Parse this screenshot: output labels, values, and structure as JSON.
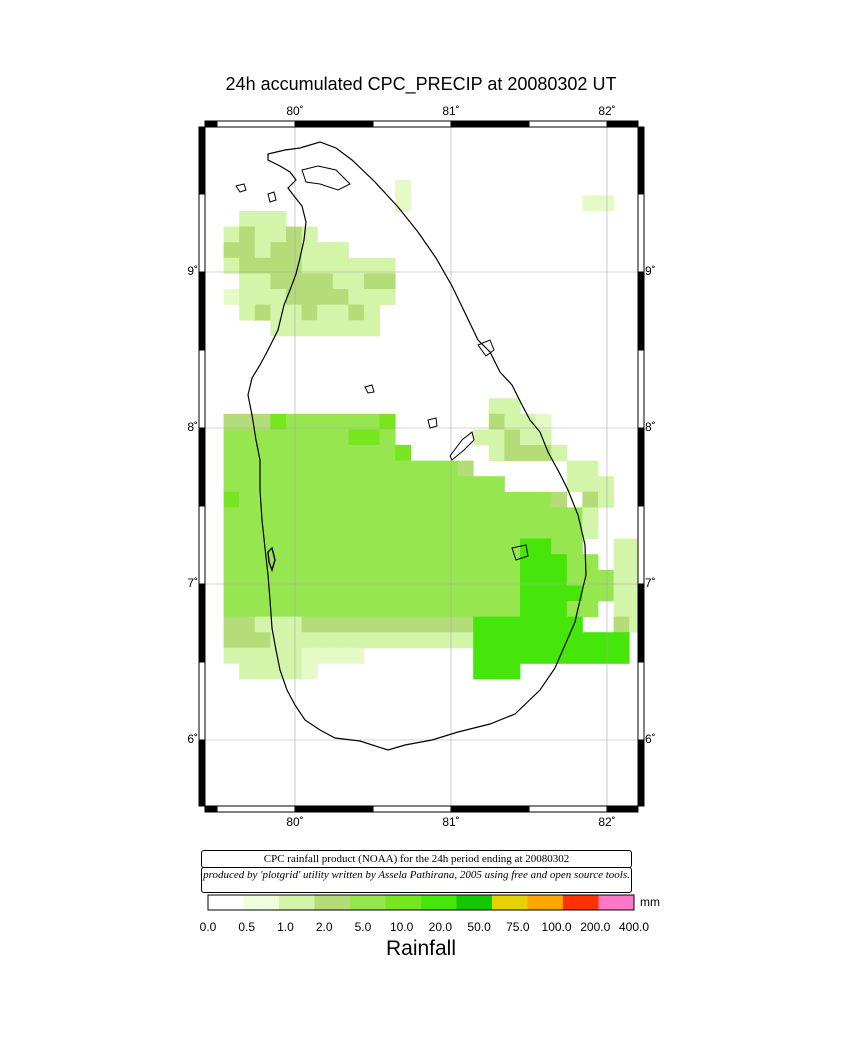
{
  "title": "24h accumulated CPC_PRECIP  at 20080302 UT",
  "lon_ticks": [
    {
      "value": 80,
      "label": "80˚"
    },
    {
      "value": 81,
      "label": "81˚"
    },
    {
      "value": 82,
      "label": "82˚"
    }
  ],
  "lat_ticks": [
    {
      "value": 9,
      "label": "9˚"
    },
    {
      "value": 8,
      "label": "8˚"
    },
    {
      "value": 7,
      "label": "7˚"
    },
    {
      "value": 6,
      "label": "6˚"
    }
  ],
  "info_line1": "CPC rainfall product (NOAA) for the 24h period ending at 20080302",
  "info_line2": "produced by 'plotgrid' utility written by Assela Pathirana, 2005 using free and open source tools.",
  "colorbar": {
    "unit": "mm",
    "title": "Rainfall",
    "labels": [
      "0.0",
      "0.5",
      "1.0",
      "2.0",
      "5.0",
      "10.0",
      "20.0",
      "50.0",
      "75.0",
      "100.0",
      "200.0",
      "400.0"
    ],
    "colors": [
      "#ffffff",
      "#f0ffdc",
      "#d2f5aa",
      "#b4dc78",
      "#96e650",
      "#78e61e",
      "#46e60a",
      "#14c800",
      "#e6d200",
      "#ffa500",
      "#ff3200",
      "#ff78c8"
    ]
  },
  "cell_colors": {
    "a": "#e6fac8",
    "b": "#d2f5aa",
    "c": "#b4dc78",
    "d": "#aaeb5a",
    "e": "#96e650",
    "f": "#78e61e",
    "g": "#46e60a",
    "h": "#14c800"
  },
  "precip_grid": [
    "...........................",
    "...........................",
    "...........................",
    "............a..............",
    "............a...........aa.",
    "..bbb......................",
    ".bcbbcb....................",
    ".ccbccbbb..................",
    ".bccccbbbbbb...............",
    "..bbccccbbcc...............",
    ".abbbccccbbb...............",
    "..bcbbcbbcb................",
    "....bbbbbbb................",
    "...........................",
    "...........................",
    "...........................",
    "...........................",
    "..................bb.......",
    ".cccfeeeeeef......cbba.....",
    ".eeeeeeeeffe.....bbcbb.....",
    ".eeeeeeeeeeef.....bcccb....",
    ".eeeeeeeeeeeeeeec......bb..",
    ".eeeeeeeeeeeeeeeeee....bbb.",
    ".feeeeeeeeeeeeeeeeeeeec.cb.",
    ".eeeeeeeeeeeeeeeeeeeeeeeb..",
    ".eeeeeeeeeeeeeeeeeeeeeeeb..",
    ".eeeeeeeeeeeeeeeeeeeggee..bb",
    ".eeeeeeeeeeeeeeeeeeegggee.bb",
    ".eeeeeeeeeeeeeeeeeeegggeeebbb",
    ".eeeeeeeeeeeeeeeeeeeggggeebbb",
    ".eeeeeeeeeeeeeeeeeeegggee.bb",
    ".ccbbbcccccccccccggggggg..cb",
    ".cccbbbbbbbbbbbbbgggggggggg",
    ".bbbbbaaaa.......gggggggggg",
    "..bbbba..........ggg........"
  ]
}
